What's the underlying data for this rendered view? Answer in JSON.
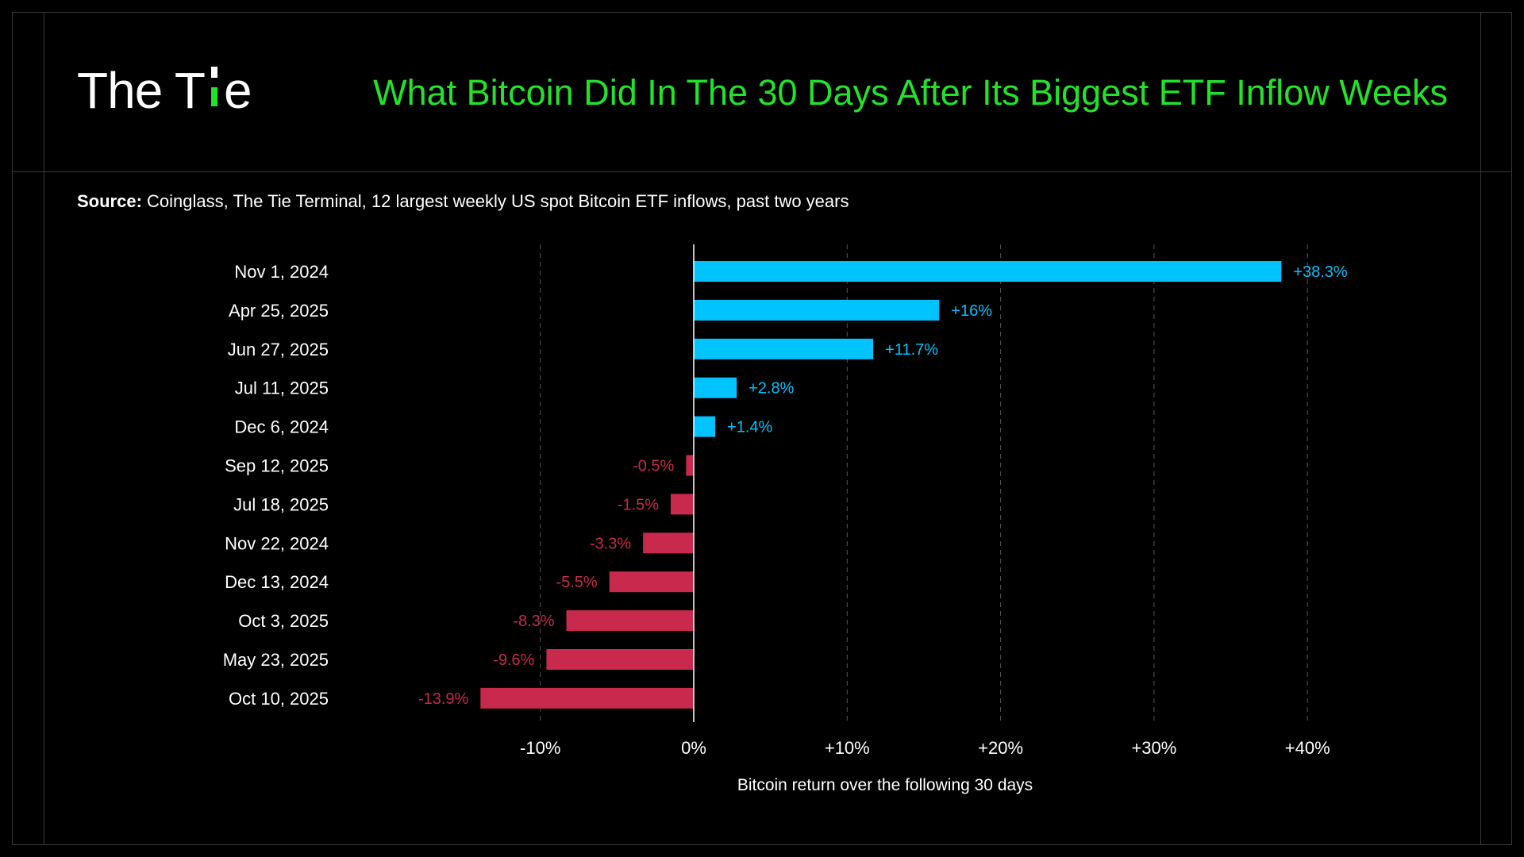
{
  "header": {
    "brand_prefix": "The T",
    "brand_suffix": "e",
    "title": "What Bitcoin Did In The 30 Days After Its Biggest ETF Inflow Weeks"
  },
  "source": {
    "label": "Source:",
    "text": " Coinglass, The Tie Terminal, 12 largest weekly US spot Bitcoin ETF inflows, past two years"
  },
  "colors": {
    "positive": "#00c3ff",
    "negative": "#c8294c",
    "title": "#22e22a",
    "grid": "#555555"
  },
  "chart_data": {
    "type": "bar",
    "orientation": "horizontal",
    "categories": [
      "Nov 1, 2024",
      "Apr 25, 2025",
      "Jun 27, 2025",
      "Jul 11, 2025",
      "Dec 6, 2024",
      "Sep 12, 2025",
      "Jul 18, 2025",
      "Nov 22, 2024",
      "Dec 13, 2024",
      "Oct 3, 2025",
      "May 23, 2025",
      "Oct 10, 2025"
    ],
    "values": [
      38.3,
      16,
      11.7,
      2.8,
      1.4,
      -0.5,
      -1.5,
      -3.3,
      -5.5,
      -8.3,
      -9.6,
      -13.9
    ],
    "value_labels": [
      "+38.3%",
      "+16%",
      "+11.7%",
      "+2.8%",
      "+1.4%",
      "-0.5%",
      "-1.5%",
      "-3.3%",
      "-5.5%",
      "-8.3%",
      "-9.6%",
      "-13.9%"
    ],
    "xticks": [
      -10,
      0,
      10,
      20,
      30,
      40
    ],
    "xtick_labels": [
      "-10%",
      "0%",
      "+10%",
      "+20%",
      "+30%",
      "+40%"
    ],
    "xlim": [
      -20,
      43
    ],
    "xlabel": "Bitcoin return over the following 30 days",
    "grid": "vertical dashed"
  }
}
